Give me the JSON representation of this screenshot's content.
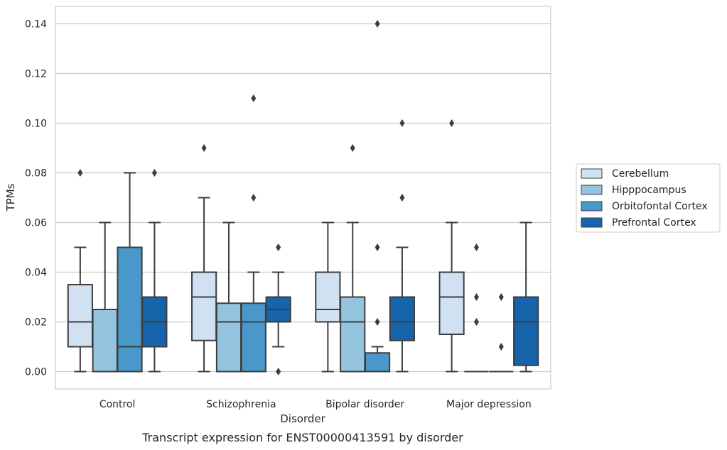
{
  "chart_data": {
    "type": "box",
    "title": "",
    "caption": "Transcript expression for ENST00000413591 by disorder",
    "xlabel": "Disorder",
    "ylabel": "TPMs",
    "ylim": [
      -0.007,
      0.147
    ],
    "yticks": [
      0.0,
      0.02,
      0.04,
      0.06,
      0.08,
      0.1,
      0.12,
      0.14
    ],
    "ytick_labels": [
      "0.00",
      "0.02",
      "0.04",
      "0.06",
      "0.08",
      "0.10",
      "0.12",
      "0.14"
    ],
    "grid": "horizontal",
    "legend_position": "right",
    "categories": [
      "Control",
      "Schizophrenia",
      "Bipolar disorder",
      "Major depression"
    ],
    "series": [
      {
        "name": "Cerebellum",
        "color": "#d0e1f2",
        "boxes": [
          {
            "q1": 0.01,
            "median": 0.02,
            "q3": 0.035,
            "whisker_low": 0.0,
            "whisker_high": 0.05,
            "outliers": [
              0.08
            ]
          },
          {
            "q1": 0.0125,
            "median": 0.03,
            "q3": 0.04,
            "whisker_low": 0.0,
            "whisker_high": 0.07,
            "outliers": [
              0.09
            ]
          },
          {
            "q1": 0.02,
            "median": 0.025,
            "q3": 0.04,
            "whisker_low": 0.0,
            "whisker_high": 0.06,
            "outliers": []
          },
          {
            "q1": 0.015,
            "median": 0.03,
            "q3": 0.04,
            "whisker_low": 0.0,
            "whisker_high": 0.06,
            "outliers": [
              0.1
            ]
          }
        ]
      },
      {
        "name": "Hipppocampus",
        "color": "#94c4df",
        "boxes": [
          {
            "q1": 0.0,
            "median": 0.0,
            "q3": 0.025,
            "whisker_low": 0.0,
            "whisker_high": 0.06,
            "outliers": []
          },
          {
            "q1": 0.0,
            "median": 0.02,
            "q3": 0.0275,
            "whisker_low": 0.0,
            "whisker_high": 0.06,
            "outliers": []
          },
          {
            "q1": 0.0,
            "median": 0.02,
            "q3": 0.03,
            "whisker_low": 0.0,
            "whisker_high": 0.06,
            "outliers": [
              0.09
            ]
          },
          {
            "q1": 0.0,
            "median": 0.0,
            "q3": 0.0,
            "whisker_low": 0.0,
            "whisker_high": 0.0,
            "outliers": [
              0.02,
              0.03,
              0.05
            ]
          }
        ]
      },
      {
        "name": "Orbitofontal Cortex",
        "color": "#4a98c9",
        "boxes": [
          {
            "q1": 0.0,
            "median": 0.01,
            "q3": 0.05,
            "whisker_low": 0.0,
            "whisker_high": 0.08,
            "outliers": []
          },
          {
            "q1": 0.0,
            "median": 0.02,
            "q3": 0.0275,
            "whisker_low": 0.0,
            "whisker_high": 0.04,
            "outliers": [
              0.07,
              0.11
            ]
          },
          {
            "q1": 0.0,
            "median": 0.0,
            "q3": 0.0075,
            "whisker_low": 0.0,
            "whisker_high": 0.01,
            "outliers": [
              0.02,
              0.05,
              0.14
            ]
          },
          {
            "q1": 0.0,
            "median": 0.0,
            "q3": 0.0,
            "whisker_low": 0.0,
            "whisker_high": 0.0,
            "outliers": [
              0.01,
              0.03
            ]
          }
        ]
      },
      {
        "name": "Prefrontal Cortex",
        "color": "#1764ab",
        "boxes": [
          {
            "q1": 0.01,
            "median": 0.02,
            "q3": 0.03,
            "whisker_low": 0.0,
            "whisker_high": 0.06,
            "outliers": [
              0.08
            ]
          },
          {
            "q1": 0.02,
            "median": 0.025,
            "q3": 0.03,
            "whisker_low": 0.01,
            "whisker_high": 0.04,
            "outliers": [
              0.0,
              0.05
            ]
          },
          {
            "q1": 0.0125,
            "median": 0.02,
            "q3": 0.03,
            "whisker_low": 0.0,
            "whisker_high": 0.05,
            "outliers": [
              0.07,
              0.1
            ]
          },
          {
            "q1": 0.0025,
            "median": 0.02,
            "q3": 0.03,
            "whisker_low": 0.0,
            "whisker_high": 0.06,
            "outliers": []
          }
        ]
      }
    ]
  }
}
